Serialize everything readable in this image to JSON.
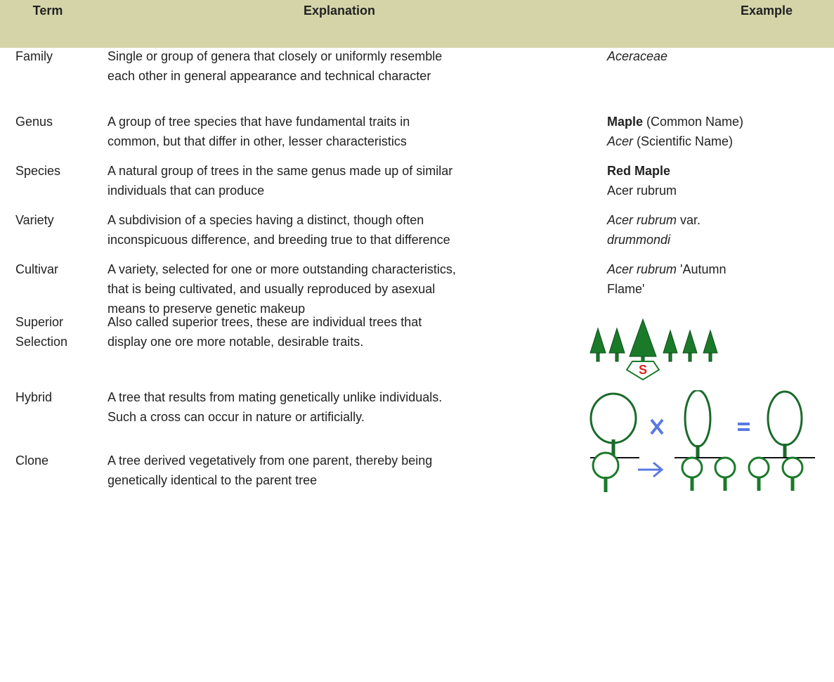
{
  "header": {
    "term": "Term",
    "explanation": "Explanation",
    "example": "Example"
  },
  "rows": [
    {
      "term": [
        "Family"
      ],
      "explanation": [
        "Single or group of genera that closely or uniformly resemble",
        "each other in general appearance and technical character"
      ],
      "example": [
        [
          {
            "text": "Aceraceae",
            "italic": true
          }
        ]
      ]
    },
    {
      "term": [
        "Genus"
      ],
      "explanation": [
        "A group of tree species that have fundamental traits in",
        "common, but that differ in other, lesser characteristics"
      ],
      "example": [
        [
          {
            "text": "Maple",
            "bold": true
          },
          {
            "text": " (Common Name)"
          }
        ],
        [
          {
            "text": "Acer",
            "italic": true
          },
          {
            "text": " (Scientific Name)"
          }
        ]
      ]
    },
    {
      "term": [
        "Species"
      ],
      "explanation": [
        "A natural group of trees in the same genus made up of similar",
        "individuals that can produce"
      ],
      "example": [
        [
          {
            "text": "Red Maple",
            "bold": true
          }
        ],
        [
          {
            "text": "Acer rubrum"
          }
        ]
      ]
    },
    {
      "term": [
        "Variety"
      ],
      "explanation": [
        "A subdivision of a species having a distinct, though often",
        "inconspicuous difference, and breeding true to that difference"
      ],
      "example": [
        [
          {
            "text": "Acer rubrum",
            "italic": true
          },
          {
            "text": " var."
          }
        ],
        [
          {
            "text": "drummondi",
            "italic": true
          }
        ]
      ]
    },
    {
      "term": [
        "Cultivar"
      ],
      "explanation": [
        "A variety, selected for one or more outstanding characteristics,",
        "that is being cultivated, and usually reproduced by asexual",
        "means to preserve genetic makeup"
      ],
      "example": [
        [
          {
            "text": "Acer rubrum",
            "italic": true
          },
          {
            "text": " 'Autumn"
          }
        ],
        [
          {
            "text": "Flame'"
          }
        ]
      ]
    },
    {
      "term": [
        "Superior",
        "Selection"
      ],
      "explanation": [
        "Also called superior trees, these are individual trees that",
        "display one ore more notable, desirable traits."
      ],
      "example": []
    },
    {
      "term": [
        "Hybrid"
      ],
      "explanation": [
        "A tree that results from mating genetically unlike individuals.",
        "Such a cross can occur in nature or artificially."
      ],
      "example": []
    },
    {
      "term": [
        "Clone"
      ],
      "explanation": [
        "A tree derived vegetatively from one parent, thereby being",
        "genetically identical to the parent tree"
      ],
      "example": []
    }
  ]
}
